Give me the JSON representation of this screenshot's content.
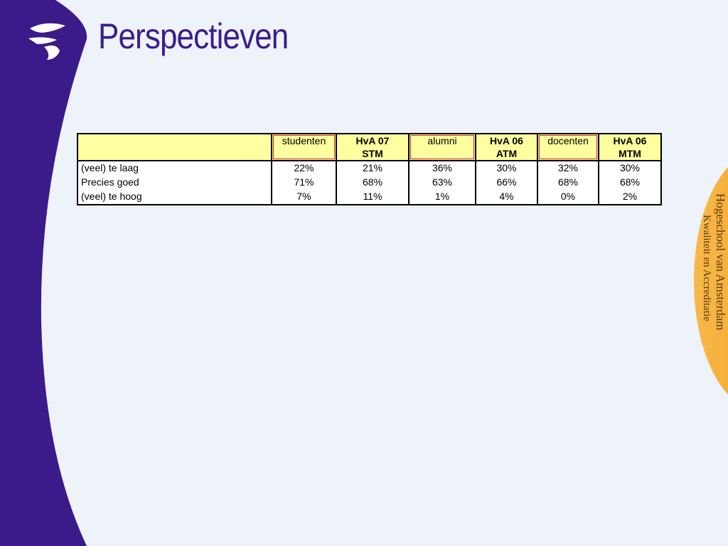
{
  "header": {
    "title": "Perspectieven"
  },
  "table": {
    "columns": [
      "",
      "studenten",
      "HvA 07\nSTM",
      "alumni",
      "HvA 06\nATM",
      "docenten",
      "HvA 06\nMTM"
    ],
    "rows": [
      [
        "(veel) te laag",
        "22%",
        "21%",
        "36%",
        "30%",
        "32%",
        "30%"
      ],
      [
        "Precies goed",
        "71%",
        "68%",
        "63%",
        "66%",
        "68%",
        "68%"
      ],
      [
        "(veel) te hoog",
        "7%",
        "11%",
        "1%",
        "4%",
        "0%",
        "2%"
      ]
    ]
  },
  "sidebar": {
    "line1": "Hogeschool van Amsterdam",
    "line2": "Kwaliteit en Accreditatie"
  }
}
